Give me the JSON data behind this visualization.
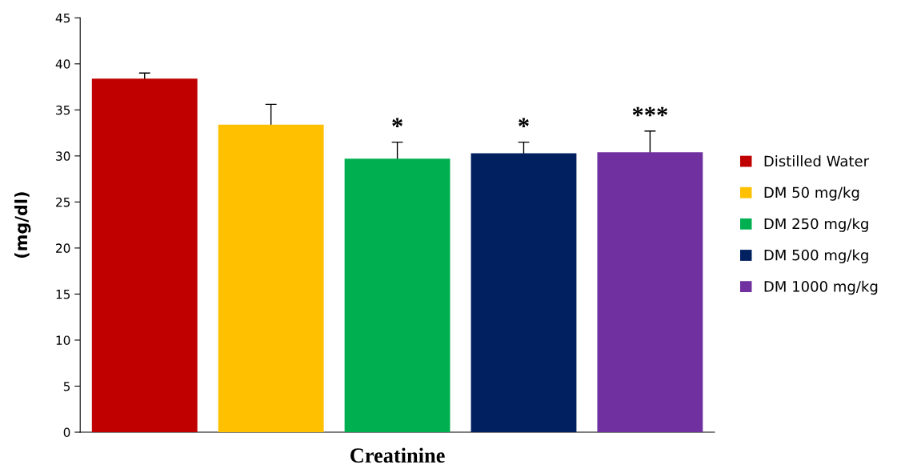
{
  "chart_data": {
    "type": "bar",
    "ylabel": "(mg/dl)",
    "categories": [
      "Creatinine"
    ],
    "series": [
      {
        "name": "Distilled Water",
        "color": "#c00000",
        "values": [
          38.4
        ],
        "errors": [
          0.6
        ],
        "value_labels": [
          null
        ]
      },
      {
        "name": "DM 50 mg/kg",
        "color": "#ffc000",
        "values": [
          33.4
        ],
        "errors": [
          2.2
        ],
        "value_labels": [
          null
        ]
      },
      {
        "name": "DM 250 mg/kg",
        "color": "#00b050",
        "values": [
          29.7
        ],
        "errors": [
          1.8
        ],
        "value_labels": [
          "*"
        ]
      },
      {
        "name": "DM 500 mg/kg",
        "color": "#002060",
        "values": [
          30.3
        ],
        "errors": [
          1.2
        ],
        "value_labels": [
          "*"
        ]
      },
      {
        "name": "DM 1000 mg/kg",
        "color": "#7030a0",
        "values": [
          30.4
        ],
        "errors": [
          2.3
        ],
        "value_labels": [
          "***"
        ]
      }
    ],
    "ylim": [
      0,
      45
    ],
    "yticks": [
      0,
      5,
      10,
      15,
      20,
      25,
      30,
      35,
      40,
      45
    ],
    "legend": "right",
    "grid": false
  }
}
